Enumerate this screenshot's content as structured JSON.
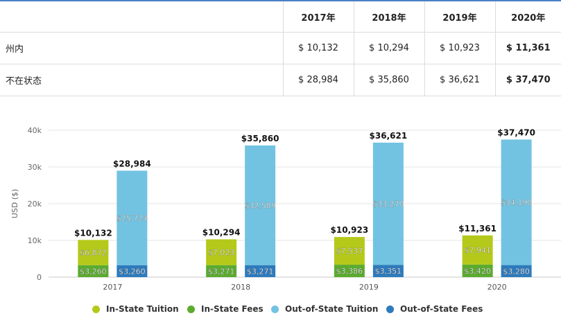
{
  "table": {
    "headers": [
      "",
      "2017年",
      "2018年",
      "2019年",
      "2020年"
    ],
    "rows": [
      {
        "label": "州内",
        "values": [
          "$ 10,132",
          "$ 10,294",
          "$ 10,923",
          "$ 11,361"
        ]
      },
      {
        "label": "不在状态",
        "values": [
          "$ 28,984",
          "$ 35,860",
          "$ 36,621",
          "$ 37,470"
        ]
      }
    ]
  },
  "chart_data": {
    "type": "bar",
    "stacked": true,
    "categories": [
      "2017",
      "2018",
      "2019",
      "2020"
    ],
    "ylabel": "USD ($)",
    "ylim": [
      0,
      40000
    ],
    "yticks": [
      0,
      10000,
      20000,
      30000,
      40000
    ],
    "ytick_labels": [
      "0",
      "10k",
      "20k",
      "30k",
      "40k"
    ],
    "grid": true,
    "legend_position": "bottom",
    "series": [
      {
        "name": "In-State Tuition",
        "stack": "in",
        "color": "#b5c91b",
        "values": [
          6872,
          7023,
          7537,
          7941
        ],
        "labels": [
          "$6,872",
          "$7,023",
          "$7,537",
          "$7,941"
        ]
      },
      {
        "name": "In-State Fees",
        "stack": "in",
        "color": "#5bab2f",
        "values": [
          3260,
          3271,
          3386,
          3420
        ],
        "labels": [
          "$3,260",
          "$3,271",
          "$3,386",
          "$3,420"
        ]
      },
      {
        "name": "Out-of-State Tuition",
        "stack": "out",
        "color": "#72c3e1",
        "values": [
          25724,
          32589,
          33270,
          34190
        ],
        "labels": [
          "$25,724",
          "$32,589",
          "$33,270",
          "$34,190"
        ]
      },
      {
        "name": "Out-of-State Fees",
        "stack": "out",
        "color": "#2d7bbd",
        "values": [
          3260,
          3271,
          3351,
          3280
        ],
        "labels": [
          "$3,260",
          "$3,271",
          "$3,351",
          "$3,280"
        ]
      }
    ],
    "totals": {
      "in": [
        "$10,132",
        "$10,294",
        "$10,923",
        "$11,361"
      ],
      "out": [
        "$28,984",
        "$35,860",
        "$36,621",
        "$37,470"
      ]
    }
  }
}
